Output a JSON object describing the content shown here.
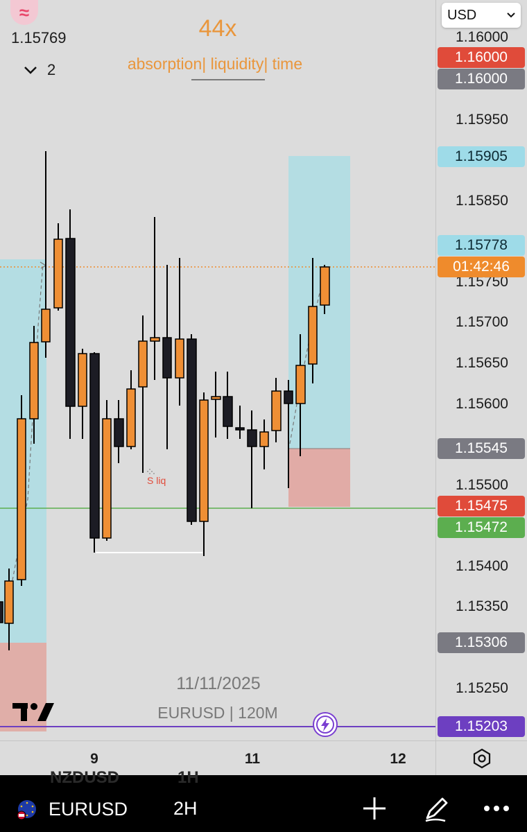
{
  "header": {
    "logo_glyph": "≈",
    "last_price": "1.15769",
    "collapse_count": "2"
  },
  "indicator": {
    "title": "44x",
    "subtitle": "absorption| liquidity| time",
    "color": "#e9963c"
  },
  "currency_select": {
    "value": "USD"
  },
  "price_axis": {
    "ticks": [
      "1.16000",
      "1.15950",
      "1.15850",
      "1.15750",
      "1.15700",
      "1.15650",
      "1.15600",
      "1.15500",
      "1.15400",
      "1.15350",
      "1.15250"
    ],
    "badges": [
      {
        "label": "1.16000",
        "bg": "#e04b3a",
        "fg": "#ffffff"
      },
      {
        "label": "1.16000",
        "bg": "#7a7a82",
        "fg": "#ffffff"
      },
      {
        "label": "1.15905",
        "bg": "#9edbe8",
        "fg": "#0d2a33"
      },
      {
        "label": "1.15778",
        "bg": "#9edbe8",
        "fg": "#0d2a33"
      },
      {
        "label": "01:42:46",
        "bg": "#ef8b2c",
        "fg": "#ffffff"
      },
      {
        "label": "1.15545",
        "bg": "#7a7a82",
        "fg": "#ffffff"
      },
      {
        "label": "1.15475",
        "bg": "#e04b3a",
        "fg": "#ffffff"
      },
      {
        "label": "1.15472",
        "bg": "#5cae4f",
        "fg": "#ffffff"
      },
      {
        "label": "1.15306",
        "bg": "#7a7a82",
        "fg": "#ffffff"
      },
      {
        "label": "1.15203",
        "bg": "#6d3fc1",
        "fg": "#ffffff"
      }
    ]
  },
  "time_axis": {
    "labels": [
      "9",
      "11",
      "12"
    ]
  },
  "watermark": {
    "date": "11/11/2025",
    "symbol_line": "EURUSD | 120M"
  },
  "annotations": {
    "s_liq": "S liq"
  },
  "colors": {
    "bull": "#ef8f35",
    "bear": "#1c1c24",
    "zone_blue": "#a7dde6",
    "zone_red": "#e0a8a2",
    "support_line": "#5cae4f",
    "purple_line": "#6d3fc1",
    "price_line": "#ef8b2c"
  },
  "bottom_bar": {
    "ghost_symbol": "NZDUSD",
    "ghost_interval": "1H",
    "symbol": "EURUSD",
    "interval": "2H",
    "add_icon": "plus-icon",
    "draw_icon": "pencil-icon",
    "more_icon": "more-icon"
  }
}
